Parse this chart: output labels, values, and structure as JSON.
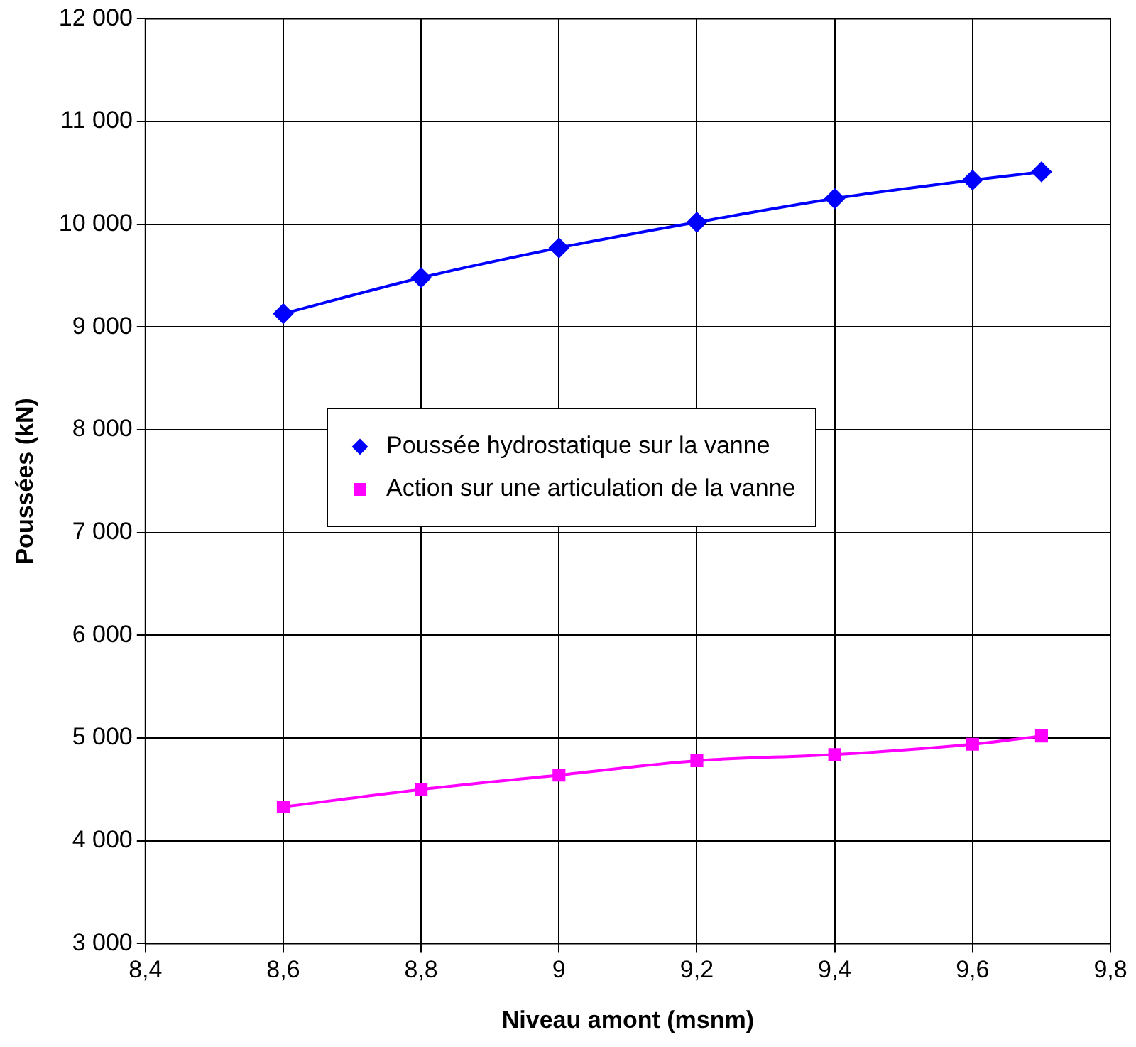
{
  "chart_data": {
    "type": "line",
    "xlabel": "Niveau amont (msnm)",
    "ylabel": "Poussées (kN)",
    "x": [
      8.6,
      8.8,
      9.0,
      9.2,
      9.4,
      9.6,
      9.7
    ],
    "series": [
      {
        "name": "Poussée hydrostatique sur la vanne",
        "color": "#0000ff",
        "marker": "diamond",
        "values": [
          9130,
          9480,
          9770,
          10020,
          10250,
          10430,
          10510
        ]
      },
      {
        "name": "Action sur une articulation de la vanne",
        "color": "#ff00ff",
        "marker": "square",
        "values": [
          4330,
          4500,
          4640,
          4780,
          4840,
          4940,
          5020
        ]
      }
    ],
    "xlim": [
      8.4,
      9.8
    ],
    "xticks": [
      {
        "value": 8.4,
        "label": "8,4"
      },
      {
        "value": 8.6,
        "label": "8,6"
      },
      {
        "value": 8.8,
        "label": "8,8"
      },
      {
        "value": 9,
        "label": "9"
      },
      {
        "value": 9.2,
        "label": "9,2"
      },
      {
        "value": 9.4,
        "label": "9,4"
      },
      {
        "value": 9.6,
        "label": "9,6"
      },
      {
        "value": 9.8,
        "label": "9,8"
      }
    ],
    "ylim": [
      3000,
      12000
    ],
    "yticks": [
      {
        "value": 3000,
        "label": "3 000"
      },
      {
        "value": 4000,
        "label": "4 000"
      },
      {
        "value": 5000,
        "label": "5 000"
      },
      {
        "value": 6000,
        "label": "6 000"
      },
      {
        "value": 7000,
        "label": "7 000"
      },
      {
        "value": 8000,
        "label": "8 000"
      },
      {
        "value": 9000,
        "label": "9 000"
      },
      {
        "value": 10000,
        "label": "10 000"
      },
      {
        "value": 11000,
        "label": "11 000"
      },
      {
        "value": 12000,
        "label": "12 000"
      }
    ],
    "grid": true,
    "legend": "center",
    "line_style": "solid"
  }
}
